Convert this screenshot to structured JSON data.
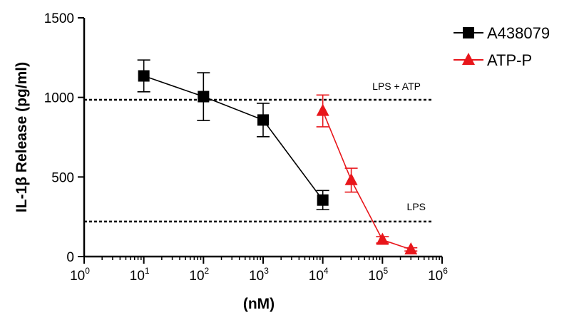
{
  "chart_data": {
    "type": "line",
    "xscale": "log",
    "xlim": [
      1,
      1000000
    ],
    "ylim": [
      0,
      1500
    ],
    "xlabel": "(nM)",
    "ylabel": "IL-1β Release (pg/ml)",
    "yticks": [
      0,
      500,
      1000,
      1500
    ],
    "xticks": [
      {
        "value": 1,
        "base": "10",
        "exp": "0"
      },
      {
        "value": 10,
        "base": "10",
        "exp": "1"
      },
      {
        "value": 100,
        "base": "10",
        "exp": "2"
      },
      {
        "value": 1000,
        "base": "10",
        "exp": "3"
      },
      {
        "value": 10000,
        "base": "10",
        "exp": "4"
      },
      {
        "value": 100000,
        "base": "10",
        "exp": "5"
      },
      {
        "value": 1000000,
        "base": "10",
        "exp": "6"
      }
    ],
    "grid": false,
    "legend": "right",
    "series": [
      {
        "name": "A438079",
        "color": "#000000",
        "marker": "square",
        "x": [
          10,
          100,
          1000,
          10000
        ],
        "y": [
          1135,
          1005,
          858,
          355
        ],
        "error": [
          100,
          150,
          105,
          60
        ]
      },
      {
        "name": "ATP-P",
        "color": "#e8161b",
        "marker": "triangle",
        "x": [
          10000,
          30000,
          100000,
          300000
        ],
        "y": [
          915,
          480,
          105,
          45
        ],
        "error": [
          100,
          75,
          20,
          10
        ]
      }
    ],
    "reference_lines": [
      {
        "label": "LPS + ATP",
        "y": 985
      },
      {
        "label": "LPS",
        "y": 220
      }
    ]
  }
}
